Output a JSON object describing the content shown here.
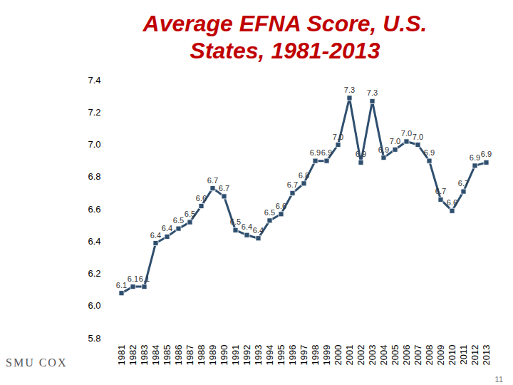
{
  "chart_data": {
    "type": "line",
    "title": "Average EFNA Score, U.S. States, 1981-2013",
    "categories": [
      "1981",
      "1982",
      "1983",
      "1984",
      "1985",
      "1986",
      "1987",
      "1988",
      "1989",
      "1990",
      "1991",
      "1992",
      "1993",
      "1994",
      "1995",
      "1996",
      "1997",
      "1998",
      "1999",
      "2000",
      "2001",
      "2002",
      "2003",
      "2004",
      "2005",
      "2006",
      "2007",
      "2008",
      "2009",
      "2010",
      "2011",
      "2012",
      "2013"
    ],
    "values": [
      6.08,
      6.12,
      6.12,
      6.39,
      6.43,
      6.48,
      6.52,
      6.62,
      6.73,
      6.68,
      6.47,
      6.44,
      6.42,
      6.53,
      6.57,
      6.7,
      6.76,
      6.9,
      6.9,
      7.0,
      7.29,
      6.89,
      7.27,
      6.92,
      6.97,
      7.02,
      7.0,
      6.9,
      6.66,
      6.59,
      6.71,
      6.87,
      6.89
    ],
    "value_labels": [
      "6.1",
      "6.1",
      "6.1",
      "6.4",
      "6.4",
      "6.5",
      "6.5",
      "6.6",
      "6.7",
      "6.7",
      "6.5",
      "6.4",
      "6.4",
      "6.5",
      "6.6",
      "6.7",
      "6.8",
      "6.9",
      "6.9",
      "7.0",
      "7.3",
      "6.9",
      "7.3",
      "6.9",
      "7.0",
      "7.0",
      "7.0",
      "6.9",
      "6.7",
      "6.6",
      "6.7",
      "6.9",
      "6.9"
    ],
    "color": "#2f4f6f",
    "marker": "square",
    "data_labels": true,
    "grid": false,
    "ylim": [
      5.8,
      7.4
    ],
    "yticks": [
      5.8,
      {
        "value": 6,
        "label": "6.0"
      },
      6.2,
      6.4,
      6.6,
      6.8,
      {
        "value": 7,
        "label": "7.0"
      },
      7.2,
      7.4
    ],
    "logo": "SMU COX",
    "page_number": "11"
  }
}
